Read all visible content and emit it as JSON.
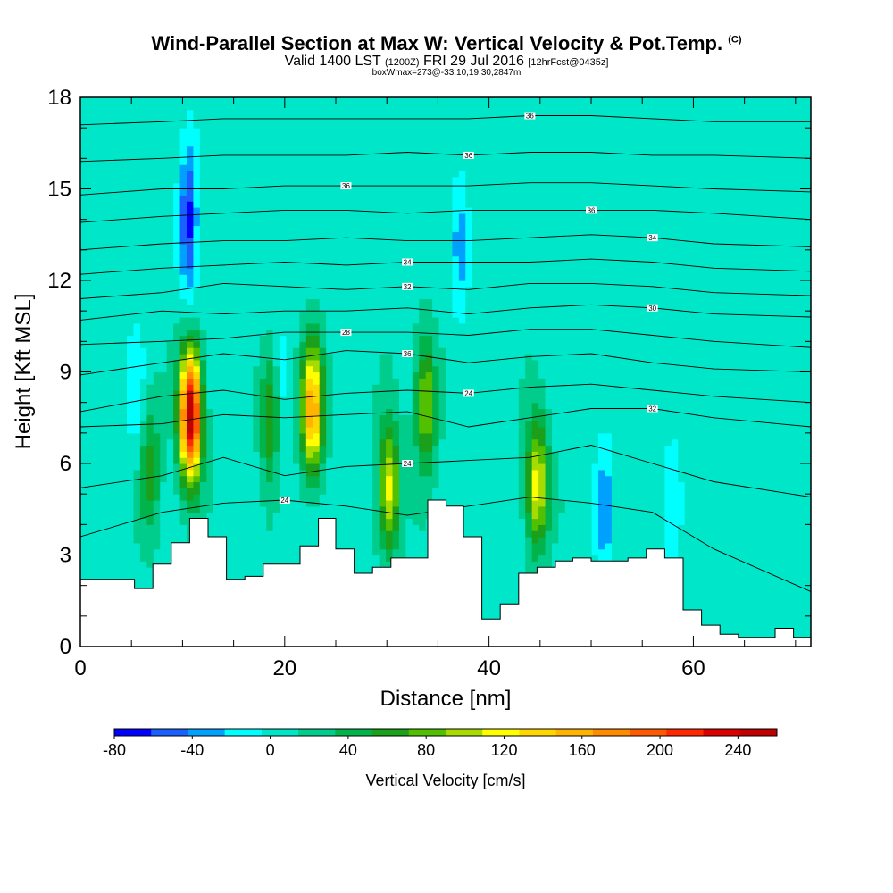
{
  "title": {
    "main": "Wind-Parallel Section at Max W: Vertical Velocity & Pot.Temp.",
    "main_suffix": "(C)",
    "valid_prefix": "Valid 1400 LST",
    "valid_utc": "(1200Z)",
    "valid_date": "FRI 29 Jul 2016",
    "valid_fcst": "[12hrFcst@0435z]",
    "boxline": "boxWmax=273@-33.10,19.30,2847m"
  },
  "chart_data": {
    "type": "heatmap",
    "xlabel": "Distance [nm]",
    "ylabel": "Height [Kft MSL]",
    "xlim": [
      0,
      71.5
    ],
    "ylim": [
      0,
      18
    ],
    "x_ticks": [
      0,
      20,
      40,
      60
    ],
    "y_ticks": [
      0,
      3,
      6,
      9,
      12,
      15,
      18
    ],
    "colorbar": {
      "label": "Vertical Velocity [cm/s]",
      "tick_labels": [
        "-80",
        "-40",
        "0",
        "40",
        "80",
        "120",
        "160",
        "200",
        "240"
      ],
      "tick_values": [
        -80,
        -40,
        0,
        40,
        80,
        120,
        160,
        200,
        240
      ],
      "range": [
        -80,
        260
      ],
      "colors": [
        "#0000ff",
        "#1a60ff",
        "#00a0ff",
        "#00ffff",
        "#00e6c8",
        "#00cc8c",
        "#00b44b",
        "#1aa01a",
        "#52c000",
        "#a8dc00",
        "#ffff00",
        "#ffd700",
        "#ffb400",
        "#ff8c00",
        "#ff5a00",
        "#ff2800",
        "#dc0000",
        "#c00000"
      ]
    },
    "background_velocity": 8,
    "updrafts": [
      {
        "x": 6.8,
        "z": 5.8,
        "peak": 55
      },
      {
        "x": 10.8,
        "z": 7.6,
        "peak": 255
      },
      {
        "x": 18.8,
        "z": 7.6,
        "peak": 85
      },
      {
        "x": 22.7,
        "z": 7.8,
        "peak": 155
      },
      {
        "x": 30.2,
        "z": 5.2,
        "peak": 110
      },
      {
        "x": 33.8,
        "z": 8.0,
        "peak": 90
      },
      {
        "x": 44.7,
        "z": 5.3,
        "peak": 115
      }
    ],
    "downdrafts": [
      {
        "x": 10.6,
        "z": 14.0,
        "peak": -75
      },
      {
        "x": 19.5,
        "z": 7.8,
        "peak": -45
      },
      {
        "x": 37.2,
        "z": 13.0,
        "peak": -35
      },
      {
        "x": 51.3,
        "z": 4.5,
        "peak": -40
      },
      {
        "x": 5.5,
        "z": 8.2,
        "peak": -25
      },
      {
        "x": 58.0,
        "z": 4.8,
        "peak": -25
      }
    ],
    "terrain_x": [
      0,
      1.8,
      3.6,
      5.3,
      7.1,
      8.9,
      10.7,
      12.5,
      14.3,
      16.1,
      17.9,
      19.7,
      21.5,
      23.3,
      25.0,
      26.8,
      28.6,
      30.4,
      32.2,
      34.0,
      35.8,
      37.5,
      39.3,
      41.1,
      42.9,
      44.7,
      46.5,
      48.2,
      50.0,
      51.8,
      53.6,
      55.4,
      57.2,
      59.0,
      60.8,
      62.6,
      64.4,
      66.2,
      68.0,
      69.8,
      71.5
    ],
    "terrain_z": [
      2.2,
      2.2,
      2.2,
      1.9,
      2.7,
      3.4,
      4.2,
      3.6,
      2.2,
      2.3,
      2.7,
      2.7,
      3.3,
      4.2,
      3.2,
      2.4,
      2.6,
      2.9,
      2.9,
      4.8,
      4.6,
      3.6,
      0.9,
      1.4,
      2.4,
      2.6,
      2.8,
      2.9,
      2.8,
      2.8,
      2.9,
      3.2,
      2.9,
      1.2,
      0.7,
      0.4,
      0.3,
      0.3,
      0.6,
      0.3,
      0.3
    ],
    "contours": [
      {
        "label": "24",
        "x": [
          0,
          8,
          14,
          20,
          26,
          32,
          38,
          44,
          50,
          56,
          62,
          71.5
        ],
        "z": [
          3.6,
          4.4,
          4.7,
          4.8,
          4.6,
          4.3,
          4.6,
          4.9,
          4.7,
          4.4,
          3.2,
          1.8
        ],
        "label_at": 3
      },
      {
        "label": "24",
        "x": [
          0,
          8,
          14,
          20,
          26,
          32,
          38,
          44,
          50,
          56,
          62,
          71.5
        ],
        "z": [
          5.2,
          5.6,
          6.2,
          5.6,
          5.9,
          6.0,
          6.1,
          6.2,
          6.6,
          6.0,
          5.4,
          4.9
        ],
        "label_at": 5
      },
      {
        "label": "32",
        "x": [
          0,
          8,
          14,
          20,
          26,
          32,
          38,
          44,
          50,
          56,
          62,
          71.5
        ],
        "z": [
          7.2,
          7.3,
          7.6,
          7.5,
          7.6,
          7.7,
          7.2,
          7.5,
          7.8,
          7.8,
          7.5,
          7.2
        ],
        "label_at": 9
      },
      {
        "label": "24",
        "x": [
          0,
          8,
          14,
          20,
          26,
          32,
          38,
          44,
          50,
          56,
          62,
          71.5
        ],
        "z": [
          7.7,
          8.2,
          8.4,
          8.1,
          8.3,
          8.4,
          8.3,
          8.5,
          8.6,
          8.4,
          8.2,
          8.0
        ],
        "label_at": 6
      },
      {
        "label": "36",
        "x": [
          0,
          8,
          14,
          20,
          26,
          32,
          38,
          44,
          50,
          56,
          62,
          71.5
        ],
        "z": [
          8.9,
          9.3,
          9.6,
          9.4,
          9.7,
          9.6,
          9.3,
          9.5,
          9.6,
          9.3,
          9.1,
          9.0
        ],
        "label_at": 5
      },
      {
        "label": "28",
        "x": [
          0,
          8,
          14,
          20,
          26,
          32,
          38,
          44,
          50,
          56,
          62,
          71.5
        ],
        "z": [
          9.9,
          10.0,
          10.1,
          10.3,
          10.3,
          10.3,
          10.2,
          10.4,
          10.4,
          10.2,
          10.0,
          9.8
        ],
        "label_at": 4
      },
      {
        "label": "30",
        "x": [
          0,
          8,
          14,
          20,
          26,
          32,
          38,
          44,
          50,
          56,
          62,
          71.5
        ],
        "z": [
          10.7,
          11.0,
          10.9,
          11.0,
          11.0,
          11.1,
          10.9,
          11.1,
          11.2,
          11.1,
          10.9,
          10.8
        ],
        "label_at": 9
      },
      {
        "label": "32",
        "x": [
          0,
          8,
          14,
          20,
          26,
          32,
          38,
          44,
          50,
          56,
          62,
          71.5
        ],
        "z": [
          11.4,
          11.6,
          11.9,
          11.8,
          11.7,
          11.8,
          11.7,
          11.9,
          11.9,
          11.8,
          11.6,
          11.5
        ],
        "label_at": 5
      },
      {
        "label": "34",
        "x": [
          0,
          8,
          14,
          20,
          26,
          32,
          38,
          44,
          50,
          56,
          62,
          71.5
        ],
        "z": [
          12.2,
          12.4,
          12.5,
          12.6,
          12.5,
          12.6,
          12.6,
          12.6,
          12.7,
          12.6,
          12.4,
          12.3
        ],
        "label_at": 5
      },
      {
        "label": "34",
        "x": [
          0,
          8,
          14,
          20,
          26,
          32,
          38,
          44,
          50,
          56,
          62,
          71.5
        ],
        "z": [
          13.0,
          13.2,
          13.3,
          13.3,
          13.4,
          13.3,
          13.3,
          13.4,
          13.5,
          13.4,
          13.2,
          13.1
        ],
        "label_at": 9
      },
      {
        "label": "36",
        "x": [
          0,
          8,
          14,
          20,
          26,
          32,
          38,
          44,
          50,
          56,
          62,
          71.5
        ],
        "z": [
          13.9,
          14.1,
          14.2,
          14.3,
          14.3,
          14.2,
          14.3,
          14.3,
          14.3,
          14.3,
          14.2,
          14.0
        ],
        "label_at": 8
      },
      {
        "label": "36",
        "x": [
          0,
          8,
          14,
          20,
          26,
          32,
          38,
          44,
          50,
          56,
          62,
          71.5
        ],
        "z": [
          14.8,
          15.0,
          15.0,
          15.1,
          15.1,
          15.1,
          15.1,
          15.2,
          15.2,
          15.1,
          15.0,
          14.9
        ],
        "label_at": 4
      },
      {
        "label": "36",
        "x": [
          0,
          8,
          14,
          20,
          26,
          32,
          38,
          44,
          50,
          56,
          62,
          71.5
        ],
        "z": [
          15.9,
          16.0,
          16.1,
          16.1,
          16.1,
          16.2,
          16.1,
          16.2,
          16.2,
          16.1,
          16.1,
          16.0
        ],
        "label_at": 6
      },
      {
        "label": "36",
        "x": [
          0,
          8,
          14,
          20,
          26,
          32,
          38,
          44,
          50,
          56,
          62,
          71.5
        ],
        "z": [
          17.1,
          17.2,
          17.3,
          17.3,
          17.3,
          17.3,
          17.3,
          17.4,
          17.4,
          17.3,
          17.2,
          17.2
        ],
        "label_at": 7
      }
    ]
  }
}
